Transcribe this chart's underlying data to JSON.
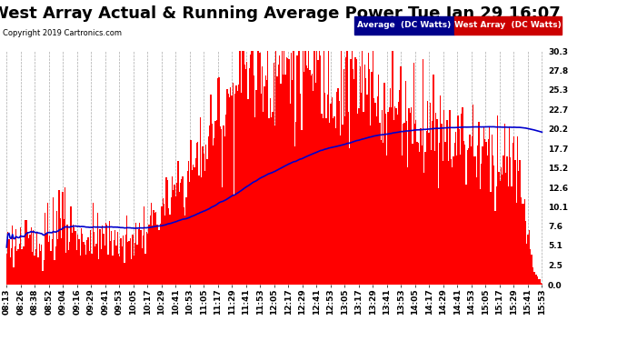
{
  "title": "West Array Actual & Running Average Power Tue Jan 29 16:07",
  "copyright": "Copyright 2019 Cartronics.com",
  "legend_avg": "Average  (DC Watts)",
  "legend_west": "West Array  (DC Watts)",
  "ylabel_right_ticks": [
    0.0,
    2.5,
    5.1,
    7.6,
    10.1,
    12.6,
    15.2,
    17.7,
    20.2,
    22.7,
    25.3,
    27.8,
    30.3
  ],
  "ylim": [
    0.0,
    30.3
  ],
  "bar_color": "#FF0000",
  "avg_line_color": "#0000CD",
  "background_color": "#FFFFFF",
  "plot_bg_color": "#FFFFFF",
  "grid_color": "#AAAAAA",
  "title_fontsize": 13,
  "tick_fontsize": 6.5,
  "x_tick_labels": [
    "08:13",
    "08:26",
    "08:38",
    "08:52",
    "09:04",
    "09:16",
    "09:29",
    "09:41",
    "09:53",
    "10:05",
    "10:17",
    "10:29",
    "10:41",
    "10:53",
    "11:05",
    "11:17",
    "11:29",
    "11:41",
    "11:53",
    "12:05",
    "12:17",
    "12:29",
    "12:41",
    "12:53",
    "13:05",
    "13:17",
    "13:29",
    "13:41",
    "13:53",
    "14:05",
    "14:17",
    "14:29",
    "14:41",
    "14:53",
    "15:05",
    "15:17",
    "15:29",
    "15:41",
    "15:53"
  ],
  "legend_blue_color": "#00008B",
  "legend_red_color": "#CC0000"
}
